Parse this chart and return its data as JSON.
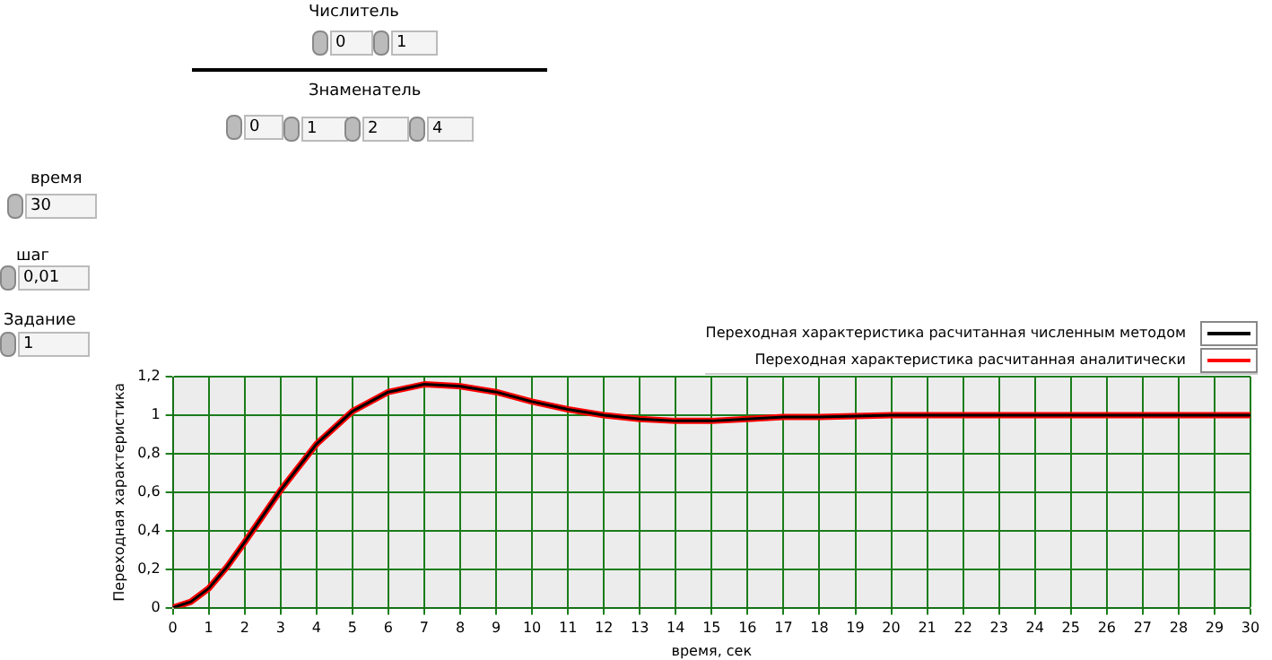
{
  "chart_data": {
    "type": "line",
    "xlabel": "время, сек",
    "ylabel": "Переходная характеристика",
    "x": [
      0,
      0.5,
      1,
      1.5,
      2,
      3,
      4,
      5,
      6,
      7,
      8,
      9,
      10,
      11,
      12,
      13,
      14,
      15,
      16,
      17,
      18,
      20,
      22,
      25,
      30
    ],
    "series": [
      {
        "name": "Переходная характеристика расчитанная численным методом",
        "color": "#000000",
        "values": [
          0,
          0.03,
          0.1,
          0.21,
          0.34,
          0.61,
          0.85,
          1.02,
          1.12,
          1.16,
          1.15,
          1.12,
          1.07,
          1.03,
          1.0,
          0.98,
          0.97,
          0.97,
          0.98,
          0.99,
          0.99,
          1.0,
          1.0,
          1.0,
          1.0
        ]
      },
      {
        "name": "Переходная характеристика расчитанная аналитически",
        "color": "#ff0000",
        "values": [
          0,
          0.03,
          0.1,
          0.21,
          0.34,
          0.61,
          0.85,
          1.02,
          1.12,
          1.16,
          1.15,
          1.12,
          1.07,
          1.03,
          1.0,
          0.98,
          0.97,
          0.97,
          0.98,
          0.99,
          0.99,
          1.0,
          1.0,
          1.0,
          1.0
        ]
      }
    ],
    "xlim": [
      0,
      30
    ],
    "xticks": [
      0,
      1,
      2,
      3,
      4,
      5,
      6,
      7,
      8,
      9,
      10,
      11,
      12,
      13,
      14,
      15,
      16,
      17,
      18,
      19,
      20,
      21,
      22,
      23,
      24,
      25,
      26,
      27,
      28,
      29,
      30
    ],
    "ylim": [
      0,
      1.2
    ],
    "yticks": [
      {
        "value": 0,
        "label": "0"
      },
      {
        "value": 0.2,
        "label": "0,2"
      },
      {
        "value": 0.4,
        "label": "0,4"
      },
      {
        "value": 0.6,
        "label": "0,6"
      },
      {
        "value": 0.8,
        "label": "0,8"
      },
      {
        "value": 1,
        "label": "1"
      },
      {
        "value": 1.2,
        "label": "1,2"
      }
    ],
    "grid": true,
    "legend": "top right",
    "marker": "none",
    "line_style": "solid",
    "annotations": [
      "Числитель",
      "0",
      "1",
      "Знаменатель",
      "0",
      "1",
      "2",
      "4",
      "время",
      "30",
      "шаг",
      "0,01",
      "Задание",
      "1"
    ]
  }
}
